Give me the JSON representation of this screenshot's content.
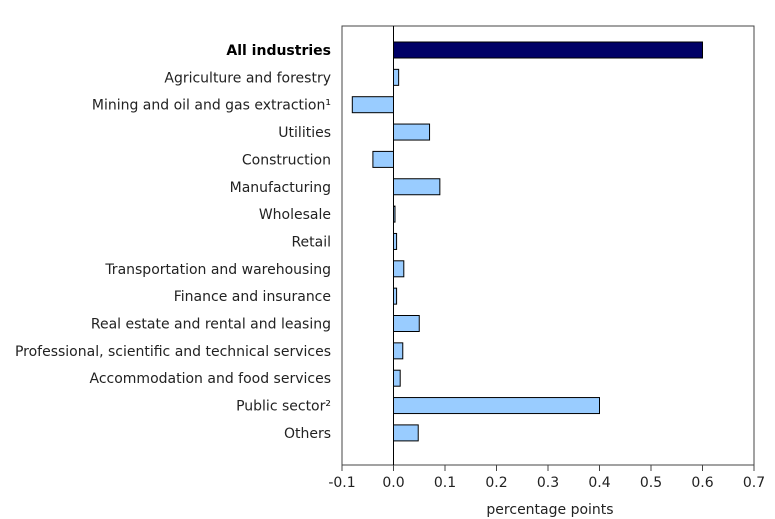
{
  "chart_data": {
    "type": "bar",
    "orientation": "horizontal",
    "title": "",
    "xlabel": "percentage points",
    "ylabel": "",
    "xlim": [
      -0.1,
      0.7
    ],
    "x_ticks": [
      -0.1,
      0.0,
      0.1,
      0.2,
      0.3,
      0.4,
      0.5,
      0.6,
      0.7
    ],
    "x_tick_labels": [
      "-0.1",
      "0.0",
      "0.1",
      "0.2",
      "0.3",
      "0.4",
      "0.5",
      "0.6",
      "0.7"
    ],
    "grid": false,
    "legend": "none",
    "colors": {
      "highlight": "#000066",
      "bar": "#99ccff",
      "bar_outline": "#000000"
    },
    "categories": [
      "All industries",
      "Agriculture and forestry",
      "Mining and oil and gas extraction¹",
      "Utilities",
      "Construction",
      "Manufacturing",
      "Wholesale",
      "Retail",
      "Transportation and warehousing",
      "Finance and insurance",
      "Real estate and rental and leasing",
      "Professional, scientific and technical services",
      "Accommodation and food services",
      "Public sector²",
      "Others"
    ],
    "values": [
      0.6,
      0.01,
      -0.08,
      0.07,
      -0.04,
      0.09,
      0.002,
      0.006,
      0.02,
      0.006,
      0.05,
      0.018,
      0.013,
      0.4,
      0.048
    ],
    "highlight_index": 0
  }
}
